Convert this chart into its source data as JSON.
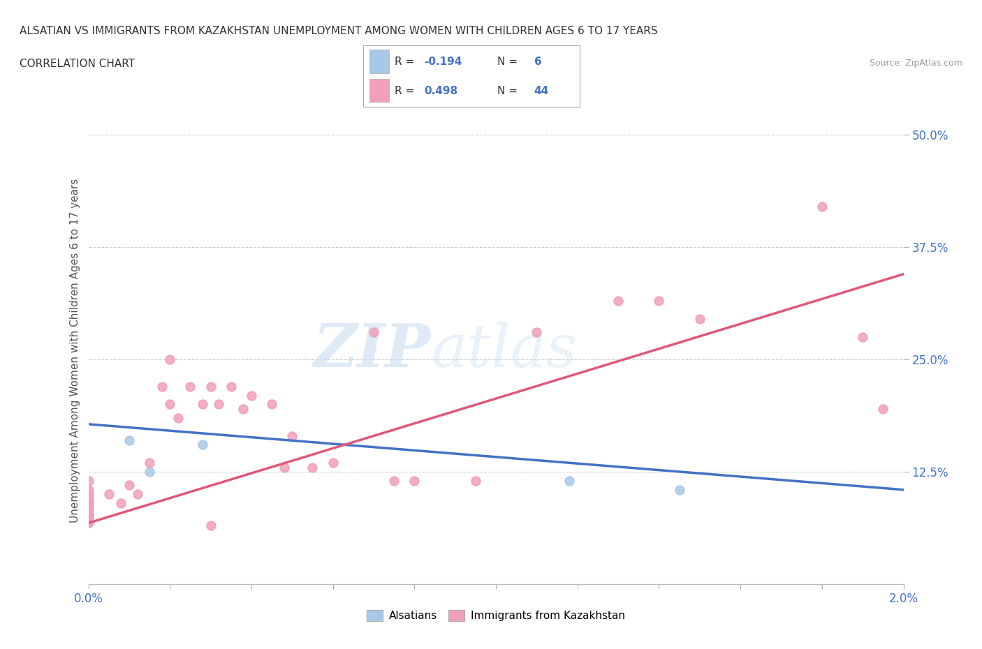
{
  "title_line1": "ALSATIAN VS IMMIGRANTS FROM KAZAKHSTAN UNEMPLOYMENT AMONG WOMEN WITH CHILDREN AGES 6 TO 17 YEARS",
  "title_line2": "CORRELATION CHART",
  "source_text": "Source: ZipAtlas.com",
  "ylabel": "Unemployment Among Women with Children Ages 6 to 17 years",
  "xlim": [
    0.0,
    0.02
  ],
  "ylim": [
    0.0,
    0.52
  ],
  "ytick_labels": [
    "12.5%",
    "25.0%",
    "37.5%",
    "50.0%"
  ],
  "ytick_values": [
    0.125,
    0.25,
    0.375,
    0.5
  ],
  "watermark_zip": "ZIP",
  "watermark_atlas": "atlas",
  "alsatian_color": "#a8c8e8",
  "kazakhstan_color": "#f0a0b8",
  "alsatian_line_color": "#4472c4",
  "kazakhstan_line_color": "#e05878",
  "alsatian_scatter_x": [
    0.0,
    0.0,
    0.0,
    0.0,
    0.0,
    0.0,
    0.001,
    0.0015,
    0.0028,
    0.0118,
    0.0145
  ],
  "alsatian_scatter_y": [
    0.068,
    0.072,
    0.075,
    0.078,
    0.085,
    0.09,
    0.16,
    0.125,
    0.155,
    0.115,
    0.105
  ],
  "kazakhstan_scatter_x": [
    0.0,
    0.0,
    0.0,
    0.0,
    0.0,
    0.0,
    0.0,
    0.0,
    0.0,
    0.0,
    0.0,
    0.0005,
    0.0008,
    0.001,
    0.0012,
    0.0015,
    0.0018,
    0.002,
    0.002,
    0.0022,
    0.0025,
    0.0028,
    0.003,
    0.003,
    0.0032,
    0.0035,
    0.0038,
    0.004,
    0.0045,
    0.0048,
    0.005,
    0.0055,
    0.006,
    0.007,
    0.0075,
    0.008,
    0.0095,
    0.011,
    0.013,
    0.014,
    0.015,
    0.018,
    0.019,
    0.0195
  ],
  "kazakhstan_scatter_y": [
    0.068,
    0.072,
    0.075,
    0.078,
    0.082,
    0.085,
    0.09,
    0.095,
    0.1,
    0.105,
    0.115,
    0.1,
    0.09,
    0.11,
    0.1,
    0.135,
    0.22,
    0.2,
    0.25,
    0.185,
    0.22,
    0.2,
    0.22,
    0.065,
    0.2,
    0.22,
    0.195,
    0.21,
    0.2,
    0.13,
    0.165,
    0.13,
    0.135,
    0.28,
    0.115,
    0.115,
    0.115,
    0.28,
    0.315,
    0.315,
    0.295,
    0.42,
    0.275,
    0.195
  ],
  "alsatian_trend_x0": 0.0,
  "alsatian_trend_y0": 0.178,
  "alsatian_trend_x1": 0.02,
  "alsatian_trend_y1": 0.105,
  "kazakhstan_trend_x0": 0.0,
  "kazakhstan_trend_y0": 0.068,
  "kazakhstan_trend_x1": 0.02,
  "kazakhstan_trend_y1": 0.345
}
